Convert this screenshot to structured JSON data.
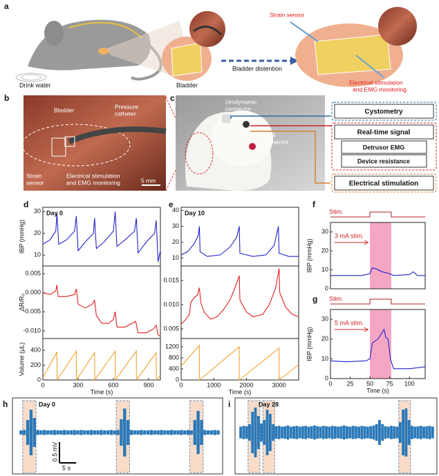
{
  "panel_labels": [
    "a",
    "b",
    "c",
    "d",
    "e",
    "f",
    "g",
    "h",
    "i"
  ],
  "panel_a": {
    "texts": [
      "Drink water",
      "Bladder",
      "Bladder distention",
      "Strain sensor",
      "Electrical stimulation",
      "and EMG monitoring"
    ]
  },
  "panel_b": {
    "texts": [
      "Bladder",
      "Pressure",
      "catheter",
      "Strain",
      "sensor",
      "Electrical stimulation",
      "and EMG monitoring",
      "5 mm"
    ]
  },
  "panel_c": {
    "texts": [
      "Urodynamic",
      "connector",
      "Skull",
      "connector"
    ],
    "boxes": [
      "Cystometry",
      "Real-time signal",
      "Detrusor EMG",
      "Device resistance",
      "Electrical stimulation"
    ]
  },
  "chart_data": [
    {
      "type": "line",
      "title": "Day 0",
      "ylabel": "IBP (mmHg)",
      "color": "#2323c8",
      "xlim": [
        0,
        1000
      ],
      "ylim": [
        5,
        32
      ],
      "yticks": [
        10,
        20,
        30
      ],
      "x": [
        0,
        60,
        110,
        120,
        135,
        200,
        270,
        285,
        300,
        360,
        430,
        440,
        455,
        520,
        600,
        615,
        630,
        700,
        780,
        795,
        810,
        880,
        950,
        965,
        980,
        1000
      ],
      "values": [
        15,
        17,
        21,
        29,
        15,
        17,
        21,
        28,
        12,
        16,
        20,
        27,
        13,
        16,
        21,
        30,
        14,
        17,
        21,
        27,
        11,
        16,
        20,
        26,
        7,
        12
      ]
    },
    {
      "type": "line",
      "ylabel": "ΔR/R₀",
      "color": "#e02020",
      "xlim": [
        0,
        1000
      ],
      "ylim": [
        -0.012,
        0.007
      ],
      "yticks": [
        0.005,
        {
          "value": 0,
          "label": "0.000"
        },
        -0.005,
        {
          "value": -0.01,
          "label": "-0.010"
        }
      ],
      "x": [
        0,
        60,
        110,
        120,
        130,
        200,
        270,
        285,
        300,
        360,
        420,
        440,
        455,
        500,
        560,
        600,
        615,
        630,
        700,
        760,
        790,
        810,
        880,
        940,
        965,
        980,
        1000
      ],
      "values": [
        0,
        -0.0005,
        0.0005,
        0.002,
        -0.001,
        -0.001,
        -0.0005,
        0.001,
        -0.003,
        -0.004,
        -0.003,
        -0.002,
        -0.006,
        -0.008,
        -0.008,
        -0.007,
        -0.005,
        -0.009,
        -0.009,
        -0.008,
        -0.0075,
        -0.0105,
        -0.0105,
        -0.0095,
        -0.0085,
        -0.011,
        -0.0115
      ]
    },
    {
      "type": "line",
      "ylabel": "Volume (μL)",
      "xlabel": "Time (s)",
      "color": "#f0a030",
      "xlim": [
        0,
        1000
      ],
      "ylim": [
        0,
        560
      ],
      "yticks": [
        0,
        200,
        400
      ],
      "xticks": [
        0,
        300,
        600,
        900
      ],
      "x": [
        0,
        120,
        121,
        285,
        286,
        440,
        441,
        615,
        616,
        795,
        796,
        965,
        966,
        1000
      ],
      "values": [
        30,
        380,
        0,
        390,
        0,
        370,
        0,
        390,
        0,
        390,
        0,
        370,
        0,
        60
      ]
    },
    {
      "type": "line",
      "title": "Day 10",
      "color": "#2323c8",
      "xlim": [
        0,
        3600
      ],
      "ylim": [
        5,
        42
      ],
      "yticks": [
        10,
        20,
        30,
        40
      ],
      "x": [
        0,
        200,
        400,
        520,
        560,
        580,
        800,
        1200,
        1500,
        1700,
        1780,
        1800,
        2200,
        2600,
        2850,
        2980,
        3000,
        3300,
        3600
      ],
      "values": [
        12,
        14,
        19,
        24,
        30,
        14,
        11,
        12,
        17,
        23,
        30,
        13,
        11,
        12,
        18,
        30,
        13,
        11,
        11
      ]
    },
    {
      "type": "line",
      "color": "#e02020",
      "xlim": [
        0,
        3600
      ],
      "ylim": [
        0.003,
        0.018
      ],
      "yticks": [
        0.005,
        {
          "value": 0.01,
          "label": "0.010"
        },
        0.015
      ],
      "x": [
        0,
        150,
        250,
        300,
        400,
        500,
        560,
        600,
        700,
        900,
        1100,
        1300,
        1500,
        1650,
        1780,
        1800,
        2000,
        2200,
        2500,
        2700,
        2900,
        3000,
        3020,
        3200,
        3400,
        3600
      ],
      "values": [
        0.006,
        0.007,
        0.008,
        0.0105,
        0.0115,
        0.012,
        0.0135,
        0.0105,
        0.0085,
        0.007,
        0.0075,
        0.009,
        0.011,
        0.0135,
        0.016,
        0.011,
        0.0085,
        0.0075,
        0.008,
        0.01,
        0.0135,
        0.0175,
        0.0125,
        0.0095,
        0.008,
        0.0075
      ]
    },
    {
      "type": "line",
      "xlabel": "Time (s)",
      "color": "#f0a030",
      "xlim": [
        0,
        3600
      ],
      "ylim": [
        0,
        1500
      ],
      "yticks": [
        0,
        400,
        800,
        1200
      ],
      "xticks": [
        0,
        1000,
        2000,
        3000
      ],
      "x": [
        0,
        560,
        561,
        1780,
        1781,
        3000,
        3001,
        3600
      ],
      "values": [
        500,
        1250,
        0,
        1200,
        0,
        1150,
        0,
        550
      ]
    },
    {
      "type": "line",
      "ylabel": "IBP (mmHg)",
      "color": "#2323c8",
      "stim_label": "Stim.",
      "stim_window": [
        50,
        77
      ],
      "annotation": "3 mA stim.",
      "xlim": [
        0,
        120
      ],
      "ylim": [
        0,
        35
      ],
      "yticks": [
        0,
        10,
        20,
        30
      ],
      "x": [
        0,
        20,
        40,
        50,
        53,
        58,
        65,
        75,
        80,
        100,
        105,
        110,
        120
      ],
      "values": [
        7,
        7,
        7,
        8,
        11,
        10.5,
        9,
        8,
        7,
        7.5,
        9,
        7,
        7
      ]
    },
    {
      "type": "line",
      "ylabel": "IBP (mmHg)",
      "xlabel": "Time (s)",
      "color": "#2323c8",
      "stim_label": "Stim.",
      "stim_window": [
        50,
        77
      ],
      "annotation": "5 mA stim.",
      "xlim": [
        0,
        120
      ],
      "ylim": [
        0,
        35
      ],
      "yticks": [
        0,
        10,
        20,
        30
      ],
      "xticks": [
        0,
        25,
        50,
        75,
        100
      ],
      "x": [
        0,
        20,
        45,
        50,
        53,
        60,
        65,
        68,
        70,
        73,
        76,
        80,
        100,
        120
      ],
      "values": [
        9,
        8.5,
        9,
        10,
        18,
        20,
        23,
        25,
        21,
        20,
        10,
        5,
        5,
        6
      ]
    },
    {
      "type": "spikes",
      "title": "Day 0",
      "color": "#2a78b8",
      "scale_y": {
        "value": 0.5,
        "label": "0.5 mV"
      },
      "scale_x": {
        "value": 5,
        "label": "5 s"
      },
      "highlights": [
        [
          1,
          5
        ],
        [
          29,
          33
        ],
        [
          51,
          55
        ]
      ],
      "values": [
        0.05,
        0.06,
        0.3,
        0.55,
        0.35,
        0.06,
        0.05,
        0.06,
        0.05,
        0.05,
        0.06,
        0.05,
        0.05,
        0.06,
        0.05,
        0.05,
        0.06,
        0.05,
        0.06,
        0.05,
        0.05,
        0.06,
        0.05,
        0.05,
        0.06,
        0.05,
        0.05,
        0.06,
        0.05,
        0.06,
        0.32,
        0.58,
        0.3,
        0.06,
        0.05,
        0.05,
        0.06,
        0.05,
        0.05,
        0.06,
        0.05,
        0.05,
        0.06,
        0.05,
        0.05,
        0.06,
        0.05,
        0.05,
        0.06,
        0.05,
        0.06,
        0.05,
        0.3,
        0.52,
        0.3,
        0.06,
        0.05,
        0.05,
        0.06,
        0.05
      ]
    },
    {
      "type": "spikes",
      "title": "Day 28",
      "color": "#2a78b8",
      "highlights": [
        [
          3,
          7
        ],
        [
          8,
          12
        ],
        [
          54,
          58
        ]
      ],
      "values": [
        0.14,
        0.16,
        0.15,
        0.2,
        0.5,
        0.6,
        0.4,
        0.22,
        0.3,
        0.55,
        0.45,
        0.2,
        0.15,
        0.16,
        0.14,
        0.15,
        0.17,
        0.14,
        0.15,
        0.16,
        0.14,
        0.15,
        0.16,
        0.14,
        0.15,
        0.17,
        0.15,
        0.14,
        0.16,
        0.15,
        0.14,
        0.16,
        0.15,
        0.14,
        0.15,
        0.17,
        0.15,
        0.14,
        0.16,
        0.15,
        0.14,
        0.16,
        0.15,
        0.14,
        0.15,
        0.17,
        0.2,
        0.3,
        0.2,
        0.15,
        0.14,
        0.16,
        0.15,
        0.14,
        0.25,
        0.55,
        0.58,
        0.3,
        0.16,
        0.14,
        0.15,
        0.16,
        0.14,
        0.15,
        0.16,
        0.14
      ]
    }
  ]
}
